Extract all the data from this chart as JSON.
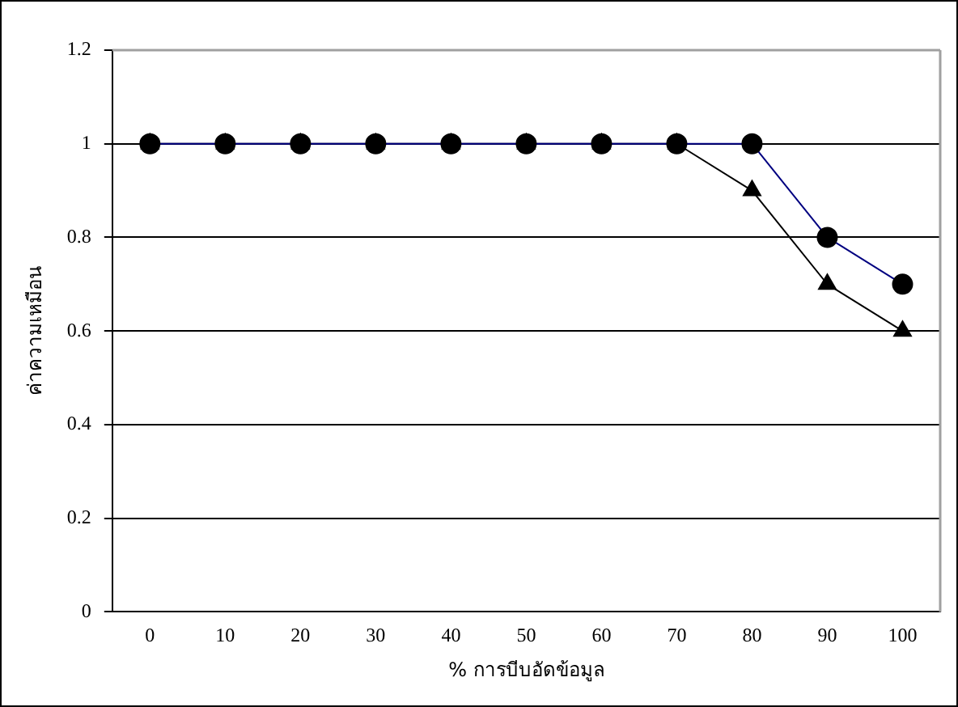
{
  "chart_data": {
    "type": "line",
    "xlabel": "% การบีบอัดข้อมูล",
    "ylabel": "ค่าความเหมือน",
    "categories": [
      "0",
      "10",
      "20",
      "30",
      "40",
      "50",
      "60",
      "70",
      "80",
      "90",
      "100"
    ],
    "series": [
      {
        "color": "#000080",
        "marker": "circle",
        "values": [
          1,
          1,
          1,
          1,
          1,
          1,
          1,
          1,
          1,
          0.8,
          0.7
        ]
      },
      {
        "color": "#000000",
        "marker": "triangle",
        "values": [
          1,
          1,
          1,
          1,
          1,
          1,
          1,
          1,
          0.9,
          0.7,
          0.6
        ]
      }
    ],
    "ylim": [
      0,
      1.2
    ],
    "yticks": [
      0,
      0.2,
      0.4,
      0.6,
      0.8,
      1,
      1.2
    ],
    "grid": "y",
    "legend": false,
    "line_style": "solid"
  }
}
